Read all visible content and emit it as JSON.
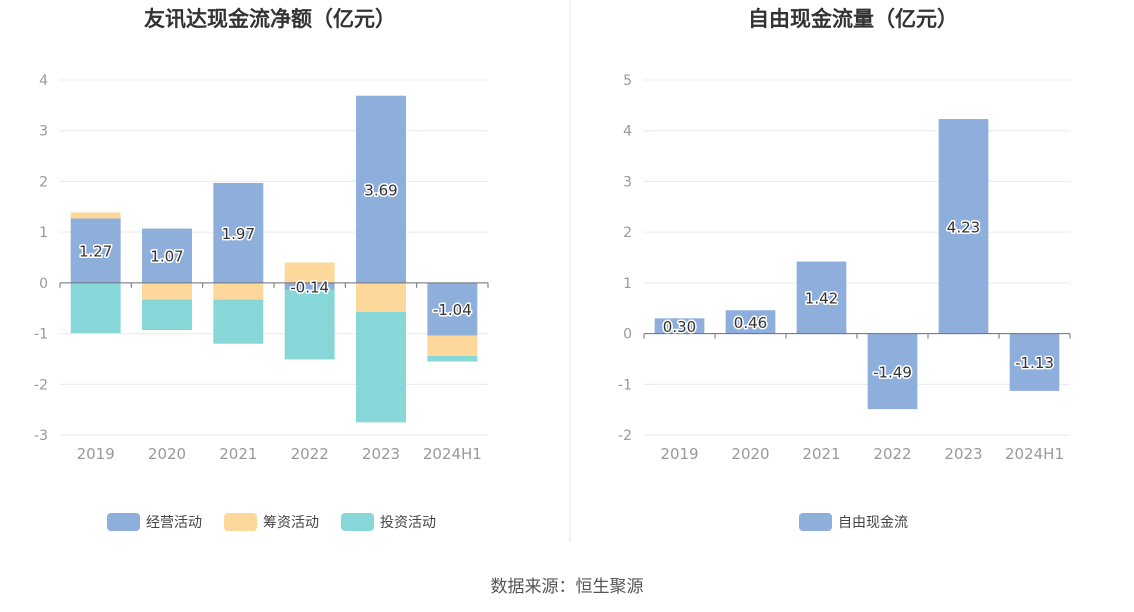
{
  "source": "数据来源：恒生聚源",
  "colors": {
    "operating": "#8eaedb",
    "financing": "#fdd89a",
    "investing": "#87d7d9",
    "fcf": "#8eaedb",
    "axis": "#999999",
    "grid": "#e6e9ef",
    "divider": "#e3e3e3"
  },
  "chart_data": [
    {
      "type": "bar",
      "stacked": true,
      "title": "友讯达现金流净额（亿元）",
      "categories": [
        "2019",
        "2020",
        "2021",
        "2022",
        "2023",
        "2024H1"
      ],
      "ylim": [
        -3,
        4
      ],
      "yticks": [
        4,
        3,
        2,
        1,
        0,
        -1,
        -2,
        -3
      ],
      "series": [
        {
          "name": "经营活动",
          "key": "operating",
          "values": [
            1.27,
            1.07,
            1.97,
            -0.14,
            3.69,
            -1.04
          ],
          "labels": [
            "1.27",
            "1.07",
            "1.97",
            "-0.14",
            "3.69",
            "-1.04"
          ]
        },
        {
          "name": "筹资活动",
          "key": "financing",
          "values": [
            0.12,
            -0.33,
            -0.33,
            0.4,
            -0.57,
            -0.4
          ]
        },
        {
          "name": "投资活动",
          "key": "investing",
          "values": [
            -0.99,
            -0.6,
            -0.87,
            -1.37,
            -2.18,
            -0.11
          ]
        }
      ],
      "legend": "bottom-center"
    },
    {
      "type": "bar",
      "title": "自由现金流量（亿元）",
      "categories": [
        "2019",
        "2020",
        "2021",
        "2022",
        "2023",
        "2024H1"
      ],
      "ylim": [
        -2,
        5
      ],
      "yticks": [
        5,
        4,
        3,
        2,
        1,
        0,
        -1,
        -2
      ],
      "series": [
        {
          "name": "自由现金流",
          "key": "fcf",
          "values": [
            0.3,
            0.46,
            1.42,
            -1.49,
            4.23,
            -1.13
          ],
          "labels": [
            "0.30",
            "0.46",
            "1.42",
            "-1.49",
            "4.23",
            "-1.13"
          ]
        }
      ],
      "legend": "bottom-center"
    }
  ]
}
